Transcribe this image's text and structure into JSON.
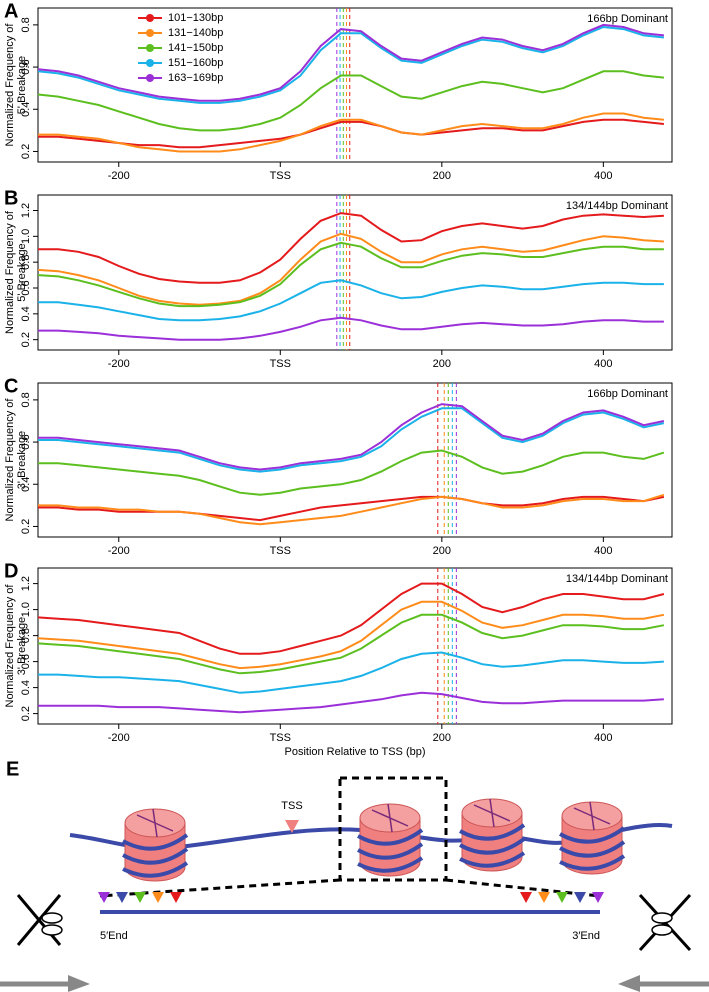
{
  "chart_data": [
    {
      "type": "line",
      "panel": "A",
      "ylabel": [
        "Normalized Frequency of",
        "5' Breakage"
      ],
      "annotation": "166bp Dominant",
      "x": [
        -300,
        -275,
        -250,
        -225,
        -200,
        -175,
        -150,
        -125,
        -100,
        -75,
        -50,
        -25,
        0,
        25,
        50,
        75,
        100,
        125,
        150,
        175,
        200,
        225,
        250,
        275,
        300,
        325,
        350,
        375,
        400,
        425,
        450,
        475
      ],
      "xlim": [
        -300,
        485
      ],
      "xticks": [
        -200,
        {
          "value": 0,
          "label": "TSS"
        },
        200,
        400
      ],
      "ylim": [
        0.15,
        0.88
      ],
      "yticks": [
        0.2,
        0.4,
        0.6,
        0.8
      ],
      "legend": "upper left",
      "series": [
        {
          "name": "101−130bp",
          "color": "#e41a1c",
          "values": [
            0.27,
            0.27,
            0.26,
            0.25,
            0.24,
            0.23,
            0.23,
            0.22,
            0.22,
            0.23,
            0.24,
            0.25,
            0.26,
            0.28,
            0.31,
            0.34,
            0.34,
            0.32,
            0.29,
            0.28,
            0.29,
            0.3,
            0.31,
            0.31,
            0.3,
            0.3,
            0.32,
            0.34,
            0.35,
            0.35,
            0.34,
            0.33
          ]
        },
        {
          "name": "131−140bp",
          "color": "#ff8c1a",
          "values": [
            0.28,
            0.28,
            0.27,
            0.26,
            0.24,
            0.22,
            0.21,
            0.2,
            0.2,
            0.2,
            0.21,
            0.23,
            0.25,
            0.28,
            0.32,
            0.35,
            0.35,
            0.32,
            0.29,
            0.28,
            0.3,
            0.32,
            0.33,
            0.32,
            0.31,
            0.31,
            0.33,
            0.36,
            0.38,
            0.38,
            0.36,
            0.35
          ]
        },
        {
          "name": "141−150bp",
          "color": "#5cbf1f",
          "values": [
            0.47,
            0.46,
            0.44,
            0.42,
            0.39,
            0.36,
            0.33,
            0.31,
            0.3,
            0.3,
            0.31,
            0.33,
            0.36,
            0.42,
            0.5,
            0.56,
            0.56,
            0.51,
            0.46,
            0.45,
            0.48,
            0.51,
            0.53,
            0.52,
            0.5,
            0.48,
            0.5,
            0.54,
            0.58,
            0.58,
            0.56,
            0.55
          ]
        },
        {
          "name": "151−160bp",
          "color": "#1ab2e8",
          "values": [
            0.58,
            0.57,
            0.55,
            0.52,
            0.49,
            0.47,
            0.45,
            0.44,
            0.43,
            0.43,
            0.44,
            0.46,
            0.49,
            0.56,
            0.68,
            0.76,
            0.76,
            0.69,
            0.63,
            0.62,
            0.66,
            0.7,
            0.73,
            0.72,
            0.69,
            0.67,
            0.7,
            0.75,
            0.79,
            0.78,
            0.75,
            0.74
          ]
        },
        {
          "name": "163−169bp",
          "color": "#9b30d9",
          "values": [
            0.59,
            0.58,
            0.56,
            0.53,
            0.5,
            0.48,
            0.46,
            0.45,
            0.44,
            0.44,
            0.45,
            0.47,
            0.5,
            0.58,
            0.7,
            0.78,
            0.77,
            0.7,
            0.64,
            0.63,
            0.67,
            0.71,
            0.74,
            0.73,
            0.7,
            0.68,
            0.71,
            0.76,
            0.8,
            0.79,
            0.76,
            0.75
          ]
        }
      ],
      "peaks": [
        {
          "x": 70,
          "color": "#9b30d9"
        },
        {
          "x": 74,
          "color": "#1ab2e8"
        },
        {
          "x": 78,
          "color": "#5cbf1f"
        },
        {
          "x": 82,
          "color": "#ff8c1a"
        },
        {
          "x": 86,
          "color": "#e41a1c"
        }
      ]
    },
    {
      "type": "line",
      "panel": "B",
      "ylabel": [
        "Normalized Frequency of",
        "5' Breakage"
      ],
      "annotation": "134/144bp Dominant",
      "x": [
        -300,
        -275,
        -250,
        -225,
        -200,
        -175,
        -150,
        -125,
        -100,
        -75,
        -50,
        -25,
        0,
        25,
        50,
        75,
        100,
        125,
        150,
        175,
        200,
        225,
        250,
        275,
        300,
        325,
        350,
        375,
        400,
        425,
        450,
        475
      ],
      "xlim": [
        -300,
        485
      ],
      "xticks": [
        -200,
        {
          "value": 0,
          "label": "TSS"
        },
        200,
        400
      ],
      "ylim": [
        0.12,
        1.32
      ],
      "yticks": [
        0.2,
        0.4,
        0.6,
        0.8,
        {
          "value": 1,
          "label": "1.0"
        },
        1.2
      ],
      "series": [
        {
          "name": "101−130bp",
          "color": "#e41a1c",
          "values": [
            0.9,
            0.9,
            0.88,
            0.84,
            0.77,
            0.71,
            0.67,
            0.65,
            0.64,
            0.64,
            0.66,
            0.72,
            0.82,
            0.98,
            1.12,
            1.18,
            1.16,
            1.05,
            0.96,
            0.97,
            1.04,
            1.08,
            1.1,
            1.08,
            1.06,
            1.08,
            1.13,
            1.16,
            1.17,
            1.16,
            1.15,
            1.16
          ]
        },
        {
          "name": "131−140bp",
          "color": "#ff8c1a",
          "values": [
            0.74,
            0.73,
            0.7,
            0.66,
            0.6,
            0.54,
            0.5,
            0.48,
            0.47,
            0.48,
            0.5,
            0.56,
            0.66,
            0.82,
            0.96,
            1.02,
            0.98,
            0.88,
            0.8,
            0.8,
            0.86,
            0.9,
            0.92,
            0.9,
            0.88,
            0.89,
            0.93,
            0.97,
            1.0,
            0.99,
            0.97,
            0.96
          ]
        },
        {
          "name": "141−150bp",
          "color": "#5cbf1f",
          "values": [
            0.7,
            0.69,
            0.66,
            0.62,
            0.57,
            0.52,
            0.48,
            0.46,
            0.46,
            0.47,
            0.49,
            0.54,
            0.63,
            0.78,
            0.9,
            0.95,
            0.92,
            0.83,
            0.76,
            0.76,
            0.81,
            0.85,
            0.87,
            0.86,
            0.84,
            0.84,
            0.87,
            0.9,
            0.92,
            0.92,
            0.9,
            0.9
          ]
        },
        {
          "name": "151−160bp",
          "color": "#1ab2e8",
          "values": [
            0.49,
            0.49,
            0.47,
            0.45,
            0.42,
            0.39,
            0.36,
            0.35,
            0.35,
            0.36,
            0.38,
            0.42,
            0.48,
            0.56,
            0.64,
            0.66,
            0.62,
            0.56,
            0.52,
            0.53,
            0.57,
            0.6,
            0.62,
            0.61,
            0.59,
            0.59,
            0.61,
            0.63,
            0.64,
            0.64,
            0.63,
            0.63
          ]
        },
        {
          "name": "163−169bp",
          "color": "#9b30d9",
          "values": [
            0.27,
            0.27,
            0.26,
            0.25,
            0.23,
            0.22,
            0.21,
            0.2,
            0.2,
            0.2,
            0.21,
            0.23,
            0.26,
            0.3,
            0.35,
            0.37,
            0.35,
            0.31,
            0.28,
            0.28,
            0.3,
            0.32,
            0.33,
            0.32,
            0.31,
            0.31,
            0.32,
            0.34,
            0.35,
            0.35,
            0.34,
            0.34
          ]
        }
      ],
      "peaks": [
        {
          "x": 70,
          "color": "#9b30d9"
        },
        {
          "x": 74,
          "color": "#1ab2e8"
        },
        {
          "x": 78,
          "color": "#5cbf1f"
        },
        {
          "x": 82,
          "color": "#ff8c1a"
        },
        {
          "x": 86,
          "color": "#e41a1c"
        }
      ]
    },
    {
      "type": "line",
      "panel": "C",
      "ylabel": [
        "Normalized Frequency of",
        "3' Breakage"
      ],
      "annotation": "166bp Dominant",
      "x": [
        -300,
        -275,
        -250,
        -225,
        -200,
        -175,
        -150,
        -125,
        -100,
        -75,
        -50,
        -25,
        0,
        25,
        50,
        75,
        100,
        125,
        150,
        175,
        200,
        225,
        250,
        275,
        300,
        325,
        350,
        375,
        400,
        425,
        450,
        475
      ],
      "xlim": [
        -300,
        485
      ],
      "xticks": [
        -200,
        {
          "value": 0,
          "label": "TSS"
        },
        200,
        400
      ],
      "ylim": [
        0.15,
        0.88
      ],
      "yticks": [
        0.2,
        0.4,
        0.6,
        0.8
      ],
      "series": [
        {
          "name": "101−130bp",
          "color": "#e41a1c",
          "values": [
            0.29,
            0.29,
            0.28,
            0.28,
            0.27,
            0.27,
            0.27,
            0.27,
            0.26,
            0.25,
            0.24,
            0.23,
            0.25,
            0.27,
            0.29,
            0.3,
            0.31,
            0.32,
            0.33,
            0.34,
            0.34,
            0.33,
            0.31,
            0.3,
            0.3,
            0.31,
            0.33,
            0.34,
            0.34,
            0.33,
            0.32,
            0.34
          ]
        },
        {
          "name": "131−140bp",
          "color": "#ff8c1a",
          "values": [
            0.3,
            0.3,
            0.29,
            0.29,
            0.28,
            0.28,
            0.27,
            0.27,
            0.26,
            0.24,
            0.22,
            0.21,
            0.22,
            0.23,
            0.24,
            0.25,
            0.27,
            0.29,
            0.31,
            0.33,
            0.34,
            0.33,
            0.31,
            0.29,
            0.29,
            0.3,
            0.32,
            0.33,
            0.33,
            0.32,
            0.32,
            0.35
          ]
        },
        {
          "name": "141−150bp",
          "color": "#5cbf1f",
          "values": [
            0.5,
            0.5,
            0.49,
            0.48,
            0.47,
            0.46,
            0.45,
            0.44,
            0.42,
            0.39,
            0.36,
            0.35,
            0.36,
            0.38,
            0.39,
            0.4,
            0.42,
            0.46,
            0.51,
            0.55,
            0.56,
            0.53,
            0.48,
            0.45,
            0.46,
            0.49,
            0.53,
            0.55,
            0.55,
            0.53,
            0.52,
            0.55
          ]
        },
        {
          "name": "151−160bp",
          "color": "#1ab2e8",
          "values": [
            0.61,
            0.61,
            0.6,
            0.59,
            0.58,
            0.57,
            0.56,
            0.55,
            0.52,
            0.49,
            0.47,
            0.46,
            0.47,
            0.49,
            0.5,
            0.51,
            0.53,
            0.58,
            0.66,
            0.72,
            0.76,
            0.76,
            0.69,
            0.62,
            0.6,
            0.63,
            0.69,
            0.73,
            0.74,
            0.71,
            0.67,
            0.69
          ]
        },
        {
          "name": "163−169bp",
          "color": "#9b30d9",
          "values": [
            0.62,
            0.62,
            0.61,
            0.6,
            0.59,
            0.58,
            0.57,
            0.56,
            0.53,
            0.5,
            0.48,
            0.47,
            0.48,
            0.5,
            0.51,
            0.52,
            0.54,
            0.6,
            0.68,
            0.74,
            0.78,
            0.77,
            0.7,
            0.63,
            0.61,
            0.64,
            0.7,
            0.74,
            0.75,
            0.72,
            0.68,
            0.7
          ]
        }
      ],
      "peaks": [
        {
          "x": 195,
          "color": "#e41a1c"
        },
        {
          "x": 203,
          "color": "#ff8c1a"
        },
        {
          "x": 208,
          "color": "#5cbf1f"
        },
        {
          "x": 213,
          "color": "#1ab2e8"
        },
        {
          "x": 218,
          "color": "#9b30d9"
        }
      ]
    },
    {
      "type": "line",
      "panel": "D",
      "ylabel": [
        "Normalized Frequency of",
        "3' Breakage"
      ],
      "annotation": "134/144bp Dominant",
      "xlabel": "Position Relative to TSS (bp)",
      "x": [
        -300,
        -275,
        -250,
        -225,
        -200,
        -175,
        -150,
        -125,
        -100,
        -75,
        -50,
        -25,
        0,
        25,
        50,
        75,
        100,
        125,
        150,
        175,
        200,
        225,
        250,
        275,
        300,
        325,
        350,
        375,
        400,
        425,
        450,
        475
      ],
      "xlim": [
        -300,
        485
      ],
      "xticks": [
        -200,
        {
          "value": 0,
          "label": "TSS"
        },
        200,
        400
      ],
      "ylim": [
        0.12,
        1.32
      ],
      "yticks": [
        0.2,
        0.4,
        0.6,
        0.8,
        {
          "value": 1,
          "label": "1.0"
        },
        1.2
      ],
      "series": [
        {
          "name": "101−130bp",
          "color": "#e41a1c",
          "values": [
            0.94,
            0.93,
            0.92,
            0.9,
            0.88,
            0.86,
            0.84,
            0.82,
            0.76,
            0.7,
            0.66,
            0.66,
            0.68,
            0.72,
            0.76,
            0.8,
            0.88,
            1.0,
            1.12,
            1.2,
            1.2,
            1.12,
            1.02,
            0.98,
            1.02,
            1.08,
            1.12,
            1.12,
            1.1,
            1.08,
            1.08,
            1.12
          ]
        },
        {
          "name": "131−140bp",
          "color": "#ff8c1a",
          "values": [
            0.78,
            0.77,
            0.76,
            0.74,
            0.72,
            0.7,
            0.68,
            0.66,
            0.62,
            0.58,
            0.55,
            0.56,
            0.58,
            0.61,
            0.64,
            0.68,
            0.76,
            0.88,
            1.0,
            1.06,
            1.06,
            0.99,
            0.9,
            0.86,
            0.88,
            0.92,
            0.96,
            0.96,
            0.95,
            0.93,
            0.93,
            0.96
          ]
        },
        {
          "name": "141−150bp",
          "color": "#5cbf1f",
          "values": [
            0.74,
            0.73,
            0.72,
            0.7,
            0.68,
            0.66,
            0.64,
            0.62,
            0.58,
            0.54,
            0.51,
            0.52,
            0.54,
            0.57,
            0.6,
            0.63,
            0.7,
            0.8,
            0.9,
            0.96,
            0.96,
            0.9,
            0.82,
            0.78,
            0.8,
            0.84,
            0.88,
            0.88,
            0.87,
            0.85,
            0.85,
            0.88
          ]
        },
        {
          "name": "151−160bp",
          "color": "#1ab2e8",
          "values": [
            0.5,
            0.5,
            0.49,
            0.48,
            0.48,
            0.47,
            0.46,
            0.45,
            0.42,
            0.39,
            0.36,
            0.37,
            0.39,
            0.41,
            0.43,
            0.45,
            0.49,
            0.55,
            0.62,
            0.66,
            0.67,
            0.63,
            0.58,
            0.56,
            0.57,
            0.59,
            0.61,
            0.61,
            0.6,
            0.59,
            0.59,
            0.6
          ]
        },
        {
          "name": "163−169bp",
          "color": "#9b30d9",
          "values": [
            0.26,
            0.26,
            0.26,
            0.26,
            0.25,
            0.25,
            0.25,
            0.24,
            0.23,
            0.22,
            0.21,
            0.22,
            0.23,
            0.24,
            0.25,
            0.27,
            0.29,
            0.31,
            0.34,
            0.36,
            0.35,
            0.32,
            0.29,
            0.28,
            0.28,
            0.29,
            0.3,
            0.3,
            0.3,
            0.3,
            0.3,
            0.31
          ]
        }
      ],
      "peaks": [
        {
          "x": 195,
          "color": "#e41a1c"
        },
        {
          "x": 203,
          "color": "#ff8c1a"
        },
        {
          "x": 208,
          "color": "#5cbf1f"
        },
        {
          "x": 213,
          "color": "#1ab2e8"
        },
        {
          "x": 218,
          "color": "#9b30d9"
        }
      ]
    }
  ],
  "panel_e": {
    "label": "E",
    "tss": "TSS",
    "left_end": "5′End",
    "right_end": "3′End"
  }
}
